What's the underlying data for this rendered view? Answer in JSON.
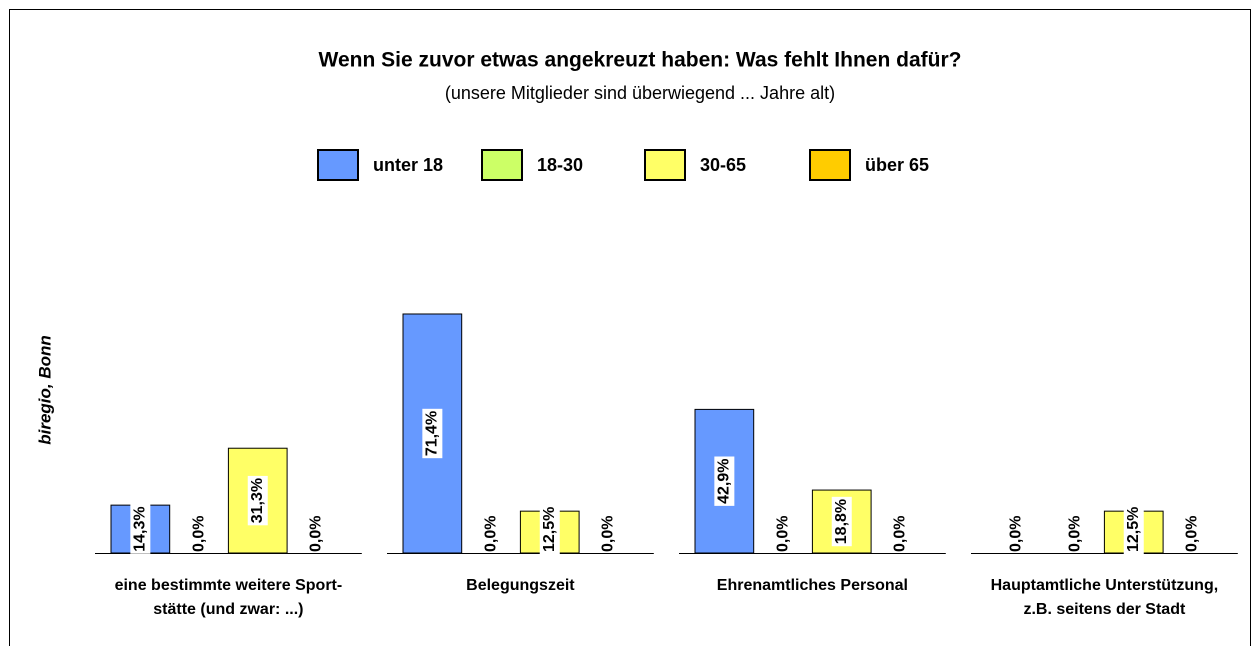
{
  "chart_data": {
    "type": "bar",
    "title": "Wenn Sie zuvor etwas angekreuzt haben: Was fehlt Ihnen dafür?",
    "subtitle": "(unsere Mitglieder sind überwiegend ... Jahre alt)",
    "y_label": "biregio, Bonn",
    "categories": [
      "eine bestimmte weitere Sport-\nstätte (und zwar: ...)",
      "Belegungszeit",
      "Ehrenamtliches Personal",
      "Hauptamtliche Unterstützung,\nz.B. seitens der Stadt"
    ],
    "ylim": [
      0,
      80
    ],
    "series": [
      {
        "name": "unter 18",
        "color": "#6699ff",
        "values": [
          14.3,
          71.4,
          42.9,
          0
        ],
        "value_labels": [
          "14,3%",
          "71,4%",
          "42,9%",
          "0,0%"
        ]
      },
      {
        "name": "18-30",
        "color": "#ccff66",
        "values": [
          0,
          0,
          0,
          0
        ],
        "value_labels": [
          "0,0%",
          "0,0%",
          "0,0%",
          "0,0%"
        ]
      },
      {
        "name": "30-65",
        "color": "#ffff66",
        "values": [
          31.3,
          12.5,
          18.8,
          12.5
        ],
        "value_labels": [
          "31,3%",
          "12,5%",
          "18,8%",
          "12,5%"
        ]
      },
      {
        "name": "über 65",
        "color": "#ffcc00",
        "values": [
          0,
          0,
          0,
          0
        ],
        "value_labels": [
          "0,0%",
          "0,0%",
          "0,0%",
          "0,0%"
        ]
      }
    ]
  }
}
